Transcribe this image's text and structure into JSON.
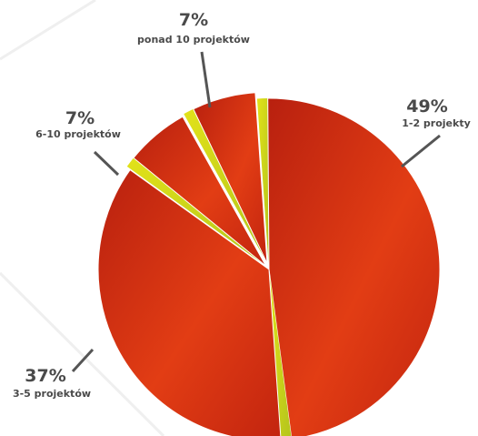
{
  "chart_data": {
    "type": "pie",
    "slices": [
      {
        "value": 49,
        "percent_label": "49%",
        "label": "1-2 projekty",
        "color": "#d83a14"
      },
      {
        "value": 37,
        "percent_label": "37%",
        "label": "3-5 projektów",
        "color": "#d83a14"
      },
      {
        "value": 7,
        "percent_label": "7%",
        "label": "6-10 projektów",
        "color": "#d83a14"
      },
      {
        "value": 7,
        "percent_label": "7%",
        "label": "ponad 10 projektów",
        "color": "#d83a14"
      }
    ],
    "separator_color": "#c8d21c",
    "leader_color": "#555555"
  }
}
